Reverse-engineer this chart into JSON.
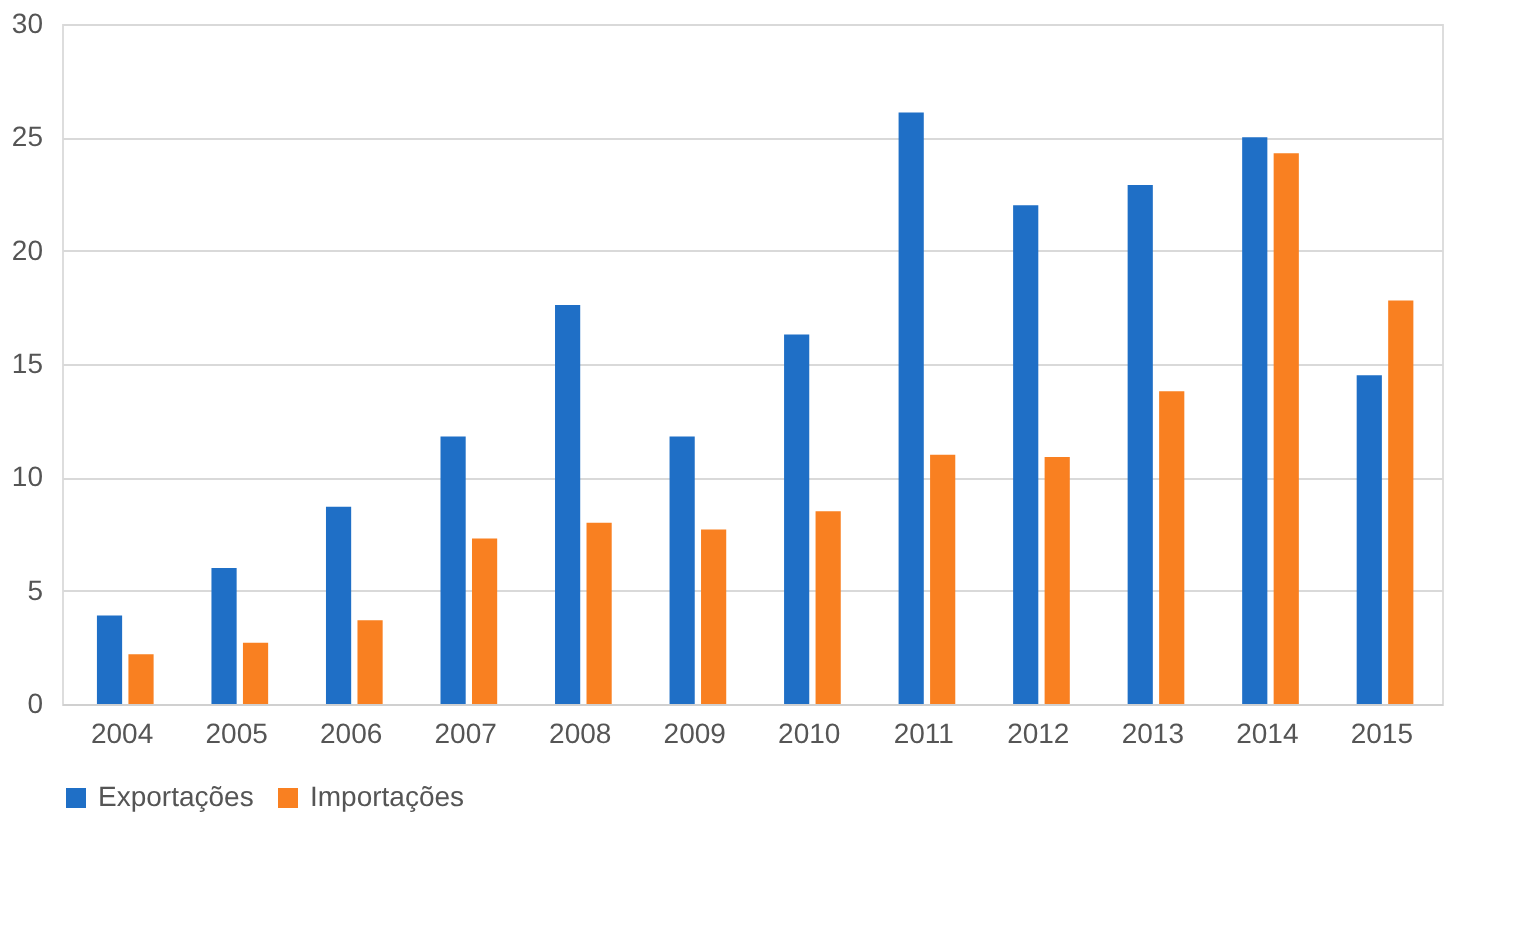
{
  "chart_data": {
    "type": "bar",
    "categories": [
      "2004",
      "2005",
      "2006",
      "2007",
      "2008",
      "2009",
      "2010",
      "2011",
      "2012",
      "2013",
      "2014",
      "2015"
    ],
    "series": [
      {
        "name": "Exportações",
        "color": "#1f6fc6",
        "values": [
          3.9,
          6.0,
          8.7,
          11.8,
          17.6,
          11.8,
          16.3,
          26.1,
          22.0,
          22.9,
          25.0,
          14.5
        ]
      },
      {
        "name": "Importações",
        "color": "#f98021",
        "values": [
          2.2,
          2.7,
          3.7,
          7.3,
          8.0,
          7.7,
          8.5,
          11.0,
          10.9,
          13.8,
          24.3,
          17.8
        ]
      }
    ],
    "ylim": [
      0,
      30
    ],
    "yticks": [
      0,
      5,
      10,
      15,
      20,
      25,
      30
    ],
    "grid": "y",
    "legend": "bottom"
  }
}
